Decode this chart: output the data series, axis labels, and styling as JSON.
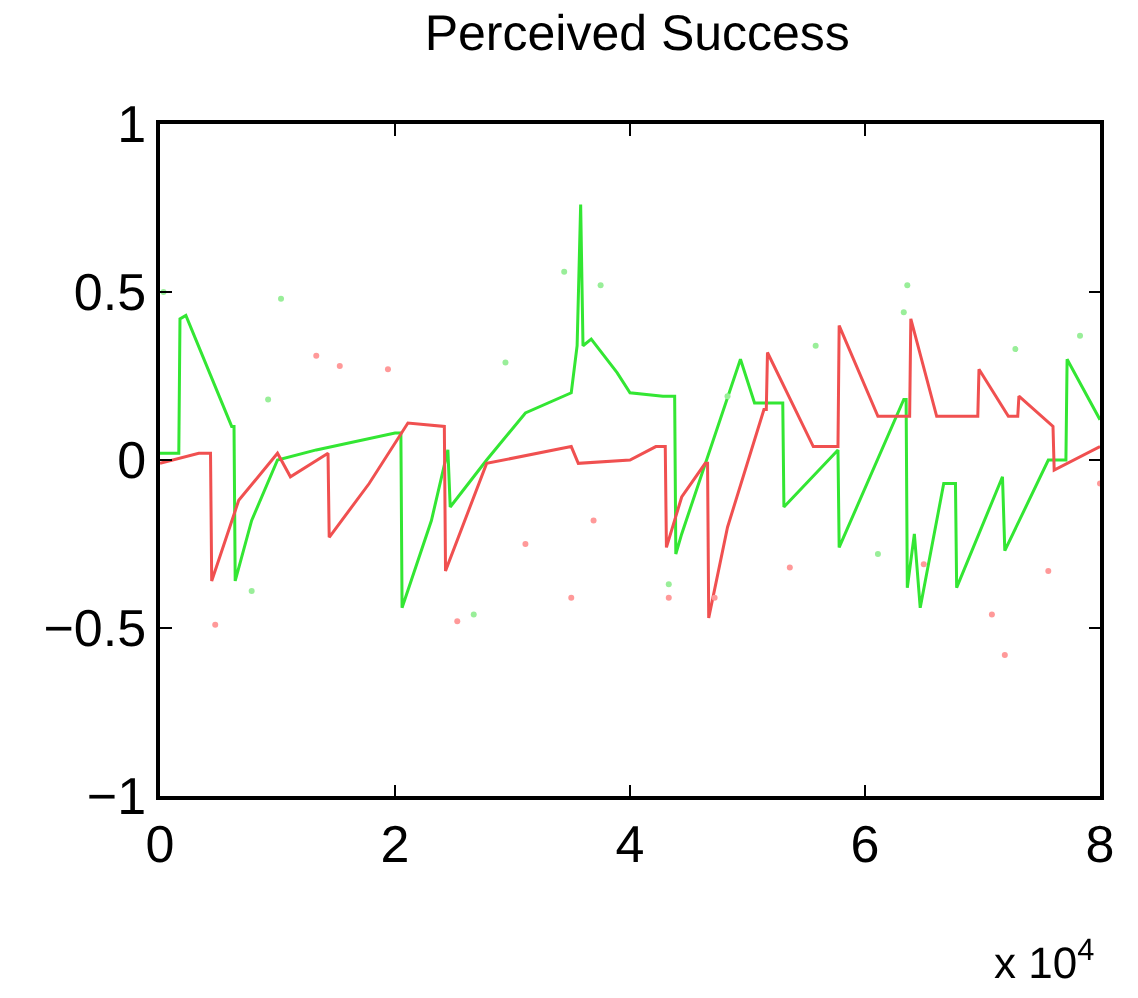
{
  "chart_data": {
    "type": "line",
    "title": "Perceived Success",
    "annotations": [
      "x 10$^{4}$"
    ],
    "xlim": [
      0,
      8
    ],
    "xticks": [
      0,
      2,
      4,
      6,
      8
    ],
    "ylim": [
      -1,
      1
    ],
    "yticks": [
      -1,
      -0.5,
      0,
      0.5,
      1
    ],
    "series": [
      {
        "color": "#33e633",
        "x": [
          0,
          0.16,
          0.17,
          0.22,
          0.61,
          0.63,
          0.64,
          0.78,
          1.0,
          1.33,
          2.0,
          2.05,
          2.06,
          2.31,
          2.45,
          2.47,
          2.78,
          3.11,
          3.5,
          3.55,
          3.58,
          3.6,
          3.67,
          3.89,
          4.0,
          4.28,
          4.38,
          4.39,
          4.44,
          4.94,
          5.06,
          5.28,
          5.3,
          5.31,
          5.77,
          5.78,
          6.33,
          6.35,
          6.36,
          6.42,
          6.47,
          6.67,
          6.77,
          6.78,
          7.17,
          7.19,
          7.56,
          7.71,
          7.72,
          8.0
        ],
        "values": [
          0.02,
          0.02,
          0.42,
          0.43,
          0.1,
          0.1,
          -0.36,
          -0.18,
          0.0,
          0.03,
          0.08,
          0.08,
          -0.44,
          -0.18,
          0.03,
          -0.14,
          0.0,
          0.14,
          0.2,
          0.34,
          0.76,
          0.34,
          0.36,
          0.26,
          0.2,
          0.19,
          0.19,
          -0.28,
          -0.22,
          0.3,
          0.17,
          0.17,
          0.17,
          -0.14,
          0.03,
          -0.26,
          0.18,
          0.18,
          -0.38,
          -0.22,
          -0.44,
          -0.07,
          -0.07,
          -0.38,
          -0.05,
          -0.27,
          0.0,
          0.0,
          0.3,
          0.12
        ]
      },
      {
        "color": "#f05050",
        "x": [
          0,
          0.33,
          0.43,
          0.44,
          0.67,
          1.0,
          1.11,
          1.43,
          1.44,
          1.78,
          2.11,
          2.42,
          2.43,
          2.78,
          3.5,
          3.56,
          4.0,
          4.22,
          4.3,
          4.31,
          4.44,
          4.64,
          4.66,
          4.67,
          4.83,
          5.14,
          5.16,
          5.17,
          5.56,
          5.77,
          5.78,
          6.11,
          6.38,
          6.39,
          6.61,
          6.94,
          6.96,
          6.97,
          7.22,
          7.3,
          7.31,
          7.6,
          7.61,
          8.0
        ],
        "values": [
          -0.01,
          0.02,
          0.02,
          -0.36,
          -0.12,
          0.02,
          -0.05,
          0.02,
          -0.23,
          -0.07,
          0.11,
          0.1,
          -0.33,
          -0.01,
          0.04,
          -0.01,
          0.0,
          0.04,
          0.04,
          -0.26,
          -0.11,
          -0.01,
          -0.01,
          -0.47,
          -0.2,
          0.15,
          0.15,
          0.32,
          0.04,
          0.04,
          0.4,
          0.13,
          0.13,
          0.42,
          0.13,
          0.13,
          0.13,
          0.27,
          0.13,
          0.13,
          0.19,
          0.1,
          -0.03,
          0.04
        ]
      },
      {
        "type": "scatter",
        "color": "#99ee99",
        "x": [
          0.03,
          0.92,
          1.03,
          2.94,
          3.44,
          3.75,
          2.67,
          0.78,
          6.36,
          6.33,
          4.83,
          5.58,
          7.28,
          7.83,
          6.11,
          4.33
        ],
        "values": [
          0.5,
          0.18,
          0.48,
          0.29,
          0.56,
          0.52,
          -0.46,
          -0.39,
          0.52,
          0.44,
          0.19,
          0.34,
          0.33,
          0.37,
          -0.28,
          -0.37
        ]
      },
      {
        "type": "scatter",
        "color": "#ff9999",
        "x": [
          1.33,
          1.94,
          1.53,
          0.47,
          2.53,
          3.5,
          3.11,
          4.33,
          4.72,
          5.36,
          7.19,
          7.08,
          7.56,
          6.5,
          8.0,
          3.69
        ],
        "values": [
          0.31,
          0.27,
          0.28,
          -0.49,
          -0.48,
          -0.41,
          -0.25,
          -0.41,
          -0.41,
          -0.32,
          -0.58,
          -0.46,
          -0.33,
          -0.31,
          -0.07,
          -0.18
        ]
      }
    ]
  }
}
